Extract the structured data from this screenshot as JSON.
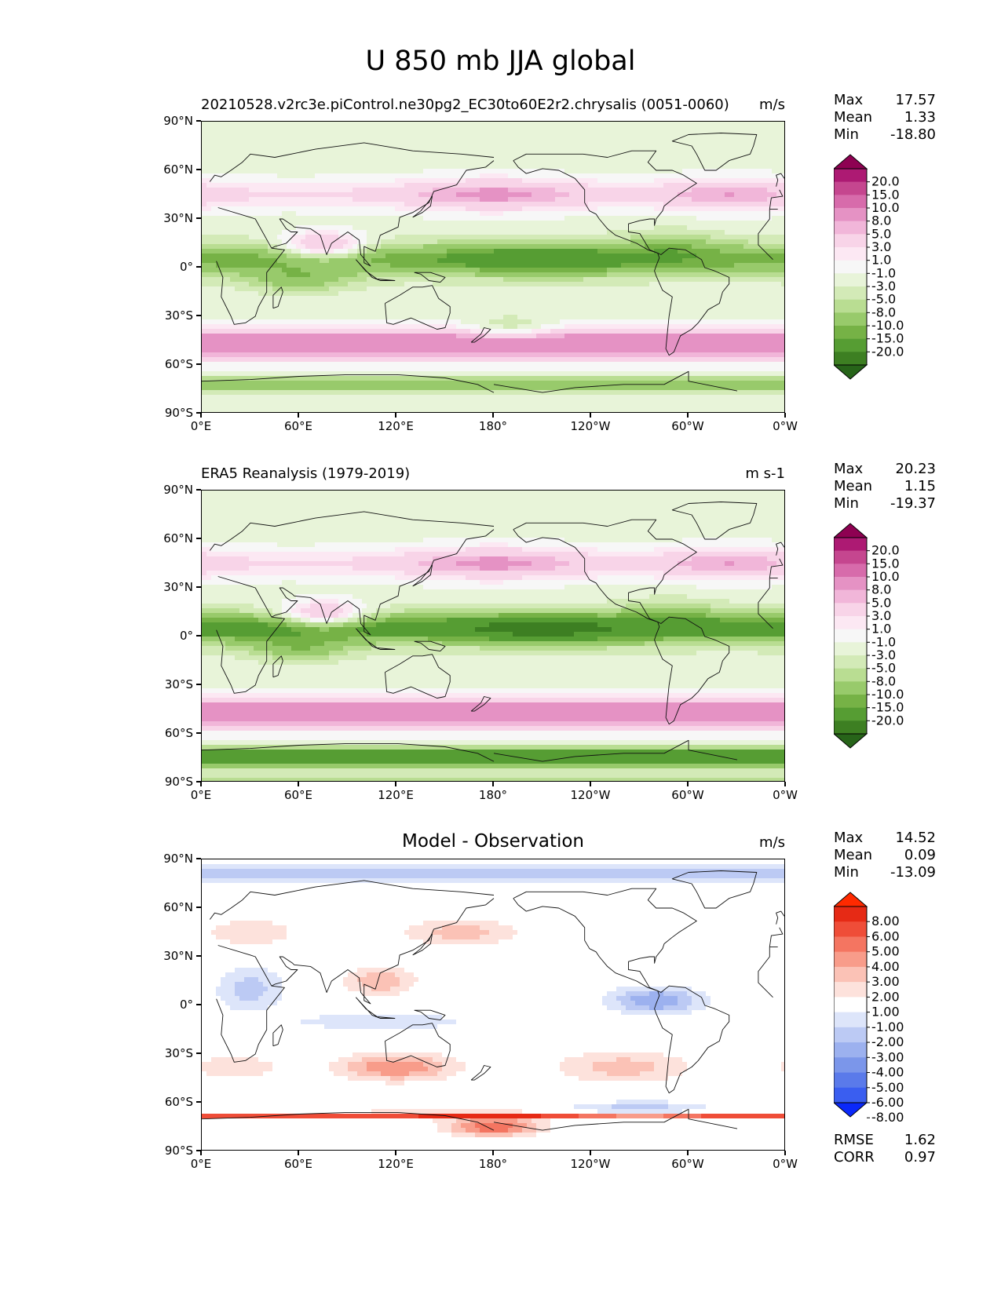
{
  "title": "U 850 mb JJA global",
  "axes": {
    "yticks": [
      "90°N",
      "60°N",
      "30°N",
      "0°",
      "30°S",
      "60°S",
      "90°S"
    ],
    "xticks": [
      "0°E",
      "60°E",
      "120°E",
      "180°",
      "120°W",
      "60°W",
      "0°W"
    ]
  },
  "colors": {
    "pinkgreen": [
      "#276419",
      "#3d7f22",
      "#569d33",
      "#76b246",
      "#98ca6b",
      "#b9dd92",
      "#d3eab7",
      "#e8f4d9",
      "#f7f7f7",
      "#fce8f3",
      "#f8d4e8",
      "#f1b6d9",
      "#e592c4",
      "#d76bab",
      "#c5468f",
      "#ad1a73",
      "#8e0152"
    ],
    "bluered": [
      "#0a28fa",
      "#3a5ef0",
      "#5a7aea",
      "#7b96ea",
      "#9cb1ef",
      "#bccaf4",
      "#dde5fa",
      "#ffffff",
      "#fde2dc",
      "#fbc2b6",
      "#f89c8a",
      "#f47561",
      "#ef4d38",
      "#e62a15",
      "#ff2a00"
    ]
  },
  "panels": [
    {
      "id": "model",
      "title_left": "20210528.v2rc3e.piControl.ne30pg2_EC30to60E2r2.chrysalis (0051-0060)",
      "title_center": "",
      "units": "m/s",
      "stats": [
        {
          "label": "Max",
          "value": "17.57"
        },
        {
          "label": "Mean",
          "value": "1.33"
        },
        {
          "label": "Min",
          "value": "-18.80"
        }
      ],
      "colorbar_levels": [
        "20.0",
        "15.0",
        "10.0",
        "8.0",
        "5.0",
        "3.0",
        "1.0",
        "-1.0",
        "-3.0",
        "-5.0",
        "-8.0",
        "-10.0",
        "-15.0",
        "-20.0"
      ],
      "colormap": "pinkgreen"
    },
    {
      "id": "obs",
      "title_left": "ERA5 Reanalysis (1979-2019)",
      "title_center": "",
      "units": "m s-1",
      "stats": [
        {
          "label": "Max",
          "value": "20.23"
        },
        {
          "label": "Mean",
          "value": "1.15"
        },
        {
          "label": "Min",
          "value": "-19.37"
        }
      ],
      "colorbar_levels": [
        "20.0",
        "15.0",
        "10.0",
        "8.0",
        "5.0",
        "3.0",
        "1.0",
        "-1.0",
        "-3.0",
        "-5.0",
        "-8.0",
        "-10.0",
        "-15.0",
        "-20.0"
      ],
      "colormap": "pinkgreen"
    },
    {
      "id": "diff",
      "title_left": "",
      "title_center": "Model - Observation",
      "units": "m/s",
      "stats": [
        {
          "label": "Max",
          "value": "14.52"
        },
        {
          "label": "Mean",
          "value": "0.09"
        },
        {
          "label": "Min",
          "value": "-13.09"
        }
      ],
      "colorbar_levels": [
        "8.00",
        "6.00",
        "5.00",
        "4.00",
        "3.00",
        "2.00",
        "1.00",
        "-1.00",
        "-2.00",
        "-3.00",
        "-4.00",
        "-5.00",
        "-6.00",
        "-8.00"
      ],
      "colormap": "bluered",
      "extra_stats": [
        {
          "label": "RMSE",
          "value": "1.62"
        },
        {
          "label": "CORR",
          "value": "0.97"
        }
      ]
    }
  ]
}
